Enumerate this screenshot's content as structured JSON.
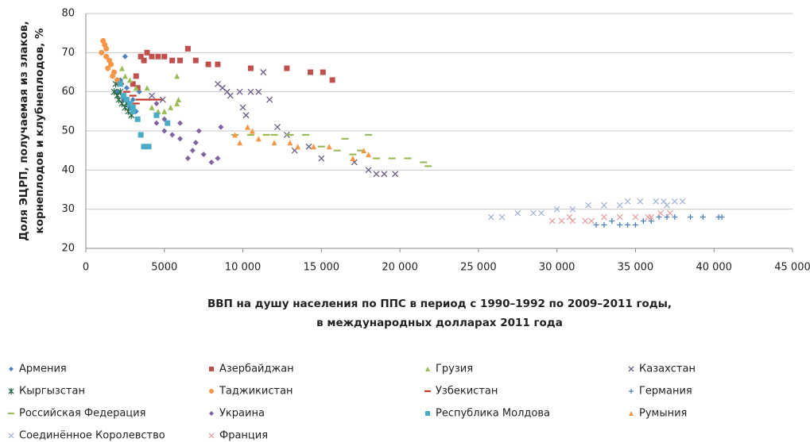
{
  "chart_data": {
    "type": "scatter",
    "ylabel": [
      "Доля ЭЦРП, получаемая из злаков,",
      "корнеплодов и клубнеплодов, %"
    ],
    "xlabel": [
      "ВВП на душу населения по ППС в период с 1990–1992 по 2009–2011 годы,",
      "в международных долларах 2011 года"
    ],
    "xlim": [
      0,
      45000
    ],
    "xticks": [
      0,
      5000,
      {
        "value": 10000,
        "label": "10 000"
      },
      {
        "value": 15000,
        "label": "15 000"
      },
      {
        "value": 20000,
        "label": "20 000"
      },
      {
        "value": 25000,
        "label": "25 000"
      },
      {
        "value": 30000,
        "label": "30 000"
      },
      {
        "value": 35000,
        "label": "35 000"
      },
      {
        "value": 40000,
        "label": "40 000"
      },
      {
        "value": 45000,
        "label": "45 000"
      }
    ],
    "ylim": [
      20,
      80
    ],
    "yticks": [
      20,
      30,
      40,
      50,
      60,
      70,
      80
    ],
    "grid": true,
    "series": [
      {
        "name": "Армения",
        "color": "#4f81bd",
        "marker": "diamond",
        "x": [
          2500,
          2200,
          2000,
          2400,
          2800,
          3200,
          3000,
          3400,
          2600
        ],
        "values": [
          69,
          63,
          60,
          58,
          56,
          55,
          58,
          60,
          61
        ]
      },
      {
        "name": "Азербайджан",
        "color": "#c0504d",
        "marker": "square",
        "x": [
          3500,
          3700,
          3900,
          4200,
          4600,
          5000,
          5500,
          6000,
          6500,
          7000,
          7800,
          8400,
          10500,
          12800,
          14300,
          15100,
          15700,
          3200,
          3000,
          3300
        ],
        "values": [
          69,
          68,
          70,
          69,
          69,
          69,
          68,
          68,
          71,
          68,
          67,
          67,
          66,
          66,
          65,
          65,
          63,
          64,
          62,
          61
        ]
      },
      {
        "name": "Грузия",
        "color": "#9bbb59",
        "marker": "triangle",
        "x": [
          2300,
          2500,
          2800,
          3200,
          3900,
          4200,
          4600,
          5000,
          5400,
          5800,
          5900,
          5800
        ],
        "values": [
          66,
          64,
          63,
          61,
          61,
          56,
          55,
          55,
          56,
          57,
          58,
          64
        ]
      },
      {
        "name": "Казахстан",
        "color": "#6b5b84",
        "marker": "x",
        "x": [
          8400,
          8700,
          9000,
          9200,
          9800,
          10500,
          11000,
          10000,
          10200,
          11700,
          12200,
          12800,
          13300,
          14200,
          15000,
          17100,
          18000,
          18500,
          19000,
          19700,
          11300,
          4900,
          4200
        ],
        "values": [
          62,
          61,
          60,
          59,
          60,
          60,
          60,
          56,
          54,
          58,
          51,
          49,
          45,
          46,
          43,
          42,
          40,
          39,
          39,
          39,
          65,
          58,
          59
        ]
      },
      {
        "name": "Кыргызстан",
        "color": "#2e6b45",
        "marker": "asterisk",
        "x": [
          1800,
          2000,
          2100,
          2300,
          2500,
          2700,
          2900,
          1900,
          2200,
          2600
        ],
        "values": [
          60,
          59,
          58,
          57,
          56,
          55,
          54,
          62,
          60,
          57
        ]
      },
      {
        "name": "Таджикистан",
        "color": "#f79646",
        "marker": "circle",
        "x": [
          1100,
          1200,
          1000,
          1300,
          1500,
          1600,
          1800,
          1400,
          1700,
          2000,
          1300
        ],
        "values": [
          73,
          72,
          70,
          69,
          68,
          67,
          65,
          66,
          64,
          63,
          71
        ]
      },
      {
        "name": "Узбекистан",
        "color": "#c0392b",
        "marker": "dash",
        "x": [
          2200,
          2600,
          3000,
          3400,
          3800,
          4200,
          4600,
          3200
        ],
        "values": [
          62,
          60,
          59,
          58,
          58,
          58,
          58,
          57
        ]
      },
      {
        "name": "Германия",
        "color": "#4f81bd",
        "marker": "plus",
        "x": [
          32500,
          33000,
          33500,
          34000,
          34500,
          35000,
          35500,
          36000,
          36500,
          37000,
          37500,
          38500,
          39300,
          40300,
          40500
        ],
        "values": [
          26,
          26,
          27,
          26,
          26,
          26,
          27,
          27,
          28,
          28,
          28,
          28,
          28,
          28,
          28
        ]
      },
      {
        "name": "Российская Федерация",
        "color": "#9bbb59",
        "marker": "dash",
        "x": [
          9500,
          10500,
          11500,
          12000,
          13000,
          14000,
          15000,
          16000,
          16500,
          17500,
          18000,
          18500,
          19500,
          20500,
          21500,
          21800,
          17000
        ],
        "values": [
          49,
          49,
          49,
          49,
          49,
          49,
          46,
          45,
          48,
          45,
          49,
          43,
          43,
          43,
          42,
          41,
          44
        ]
      },
      {
        "name": "Украина",
        "color": "#8064a2",
        "marker": "diamond",
        "x": [
          4500,
          5000,
          5500,
          6000,
          6500,
          6800,
          7000,
          7500,
          8000,
          8400,
          8600,
          6000,
          7200,
          5000,
          4500
        ],
        "values": [
          52,
          50,
          49,
          48,
          43,
          45,
          47,
          44,
          42,
          43,
          51,
          52,
          50,
          53,
          57
        ]
      },
      {
        "name": "Республика Молдова",
        "color": "#4bacc6",
        "marker": "square",
        "x": [
          2200,
          2400,
          2600,
          2800,
          3000,
          3300,
          3500,
          3700,
          4000,
          4500,
          5200,
          3000
        ],
        "values": [
          62,
          59,
          58,
          57,
          56,
          53,
          49,
          46,
          46,
          54,
          52,
          55
        ]
      },
      {
        "name": "Румыния",
        "color": "#f79646",
        "marker": "triangle",
        "x": [
          9500,
          10300,
          10600,
          11000,
          12000,
          13000,
          13500,
          14500,
          15500,
          17000,
          17700,
          18000,
          9800
        ],
        "values": [
          49,
          51,
          50,
          48,
          47,
          47,
          46,
          46,
          46,
          43,
          45,
          44,
          47
        ]
      },
      {
        "name": "Соединённое Королевство",
        "color": "#a5b6d6",
        "marker": "x",
        "x": [
          25800,
          26500,
          27500,
          28500,
          29000,
          30000,
          31000,
          32000,
          33000,
          34000,
          34500,
          35300,
          36300,
          37000,
          37500,
          38000,
          36800
        ],
        "values": [
          28,
          28,
          29,
          29,
          29,
          30,
          30,
          31,
          31,
          31,
          32,
          32,
          32,
          31,
          32,
          32,
          32
        ]
      },
      {
        "name": "Франция",
        "color": "#e6a1a1",
        "marker": "x",
        "x": [
          29700,
          30300,
          31000,
          31800,
          32200,
          33000,
          34000,
          35000,
          35800,
          36600,
          37200,
          36000,
          30800
        ],
        "values": [
          27,
          27,
          27,
          27,
          27,
          28,
          28,
          28,
          28,
          29,
          29,
          28,
          28
        ]
      }
    ]
  }
}
